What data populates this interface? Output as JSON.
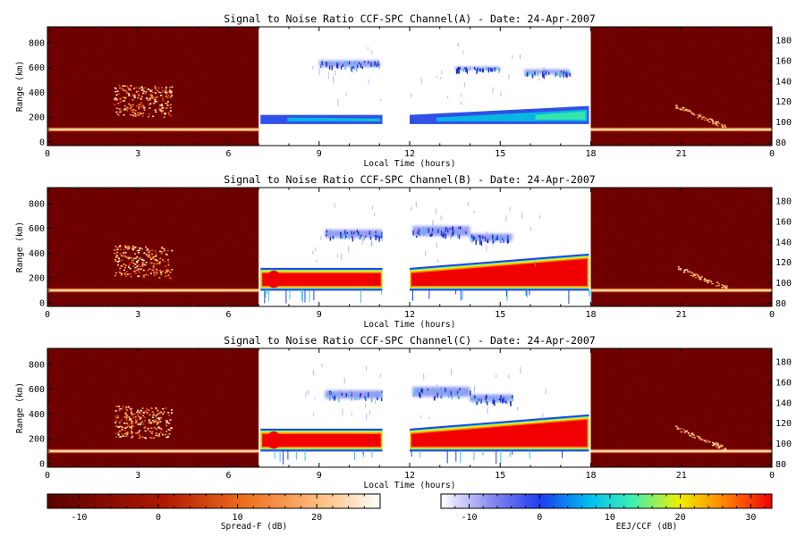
{
  "panels": [
    {
      "title": "Signal to Noise Ratio CCF-SPC Channel(A) - Date: 24-Apr-2007"
    },
    {
      "title": "Signal to Noise Ratio CCF-SPC Channel(B) - Date: 24-Apr-2007"
    },
    {
      "title": "Signal to Noise Ratio CCF-SPC Channel(C) - Date: 24-Apr-2007"
    }
  ],
  "axes": {
    "xlabel": "Local Time (hours)",
    "ylabel": "Range (km)",
    "xticks": [
      "0",
      "3",
      "6",
      "9",
      "12",
      "15",
      "18",
      "21",
      "0"
    ],
    "xtick_values": [
      0,
      3,
      6,
      9,
      12,
      15,
      18,
      21,
      24
    ],
    "xrange": [
      0,
      24
    ],
    "yticks_left": [
      "0",
      "200",
      "400",
      "600",
      "800"
    ],
    "ytick_left_values": [
      0,
      200,
      400,
      600,
      800
    ],
    "yrange_left": [
      -30,
      930
    ],
    "yticks_right": [
      "80",
      "100",
      "120",
      "140",
      "160",
      "180"
    ],
    "ytick_right_values": [
      80,
      100,
      120,
      140,
      160,
      180
    ],
    "yrange_right": [
      77,
      193
    ],
    "day_window": [
      7,
      18
    ],
    "data_gap": [
      11.1,
      12.0
    ]
  },
  "colorbars": [
    {
      "label": "Spread-F (dB)",
      "ticks": [
        "-10",
        "0",
        "10",
        "20"
      ],
      "tick_values": [
        -10,
        0,
        10,
        20
      ],
      "range": [
        -14,
        28
      ]
    },
    {
      "label": "EEJ/CCF (dB)",
      "ticks": [
        "-10",
        "0",
        "10",
        "20",
        "30"
      ],
      "tick_values": [
        -10,
        0,
        10,
        20,
        30
      ],
      "range": [
        -14,
        33
      ]
    }
  ],
  "colors": {
    "night_background": "#6e0000",
    "spread_f": "#ffc070",
    "eej_red": "#f00000",
    "ccf_blue": "#4050e0"
  },
  "chart_data": [
    {
      "type": "heatmap",
      "title": "Signal to Noise Ratio CCF-SPC Channel(A) - Date: 24-Apr-2007",
      "xlabel": "Local Time (hours)",
      "ylabel": "Range (km)",
      "xlim": [
        0,
        24
      ],
      "ylim": [
        0,
        930
      ]
    },
    {
      "type": "heatmap",
      "title": "Signal to Noise Ratio CCF-SPC Channel(B) - Date: 24-Apr-2007",
      "xlabel": "Local Time (hours)",
      "ylabel": "Range (km)",
      "xlim": [
        0,
        24
      ],
      "ylim": [
        0,
        930
      ]
    },
    {
      "type": "heatmap",
      "title": "Signal to Noise Ratio CCF-SPC Channel(C) - Date: 24-Apr-2007",
      "xlabel": "Local Time (hours)",
      "ylabel": "Range (km)",
      "xlim": [
        0,
        24
      ],
      "ylim": [
        0,
        930
      ]
    }
  ]
}
